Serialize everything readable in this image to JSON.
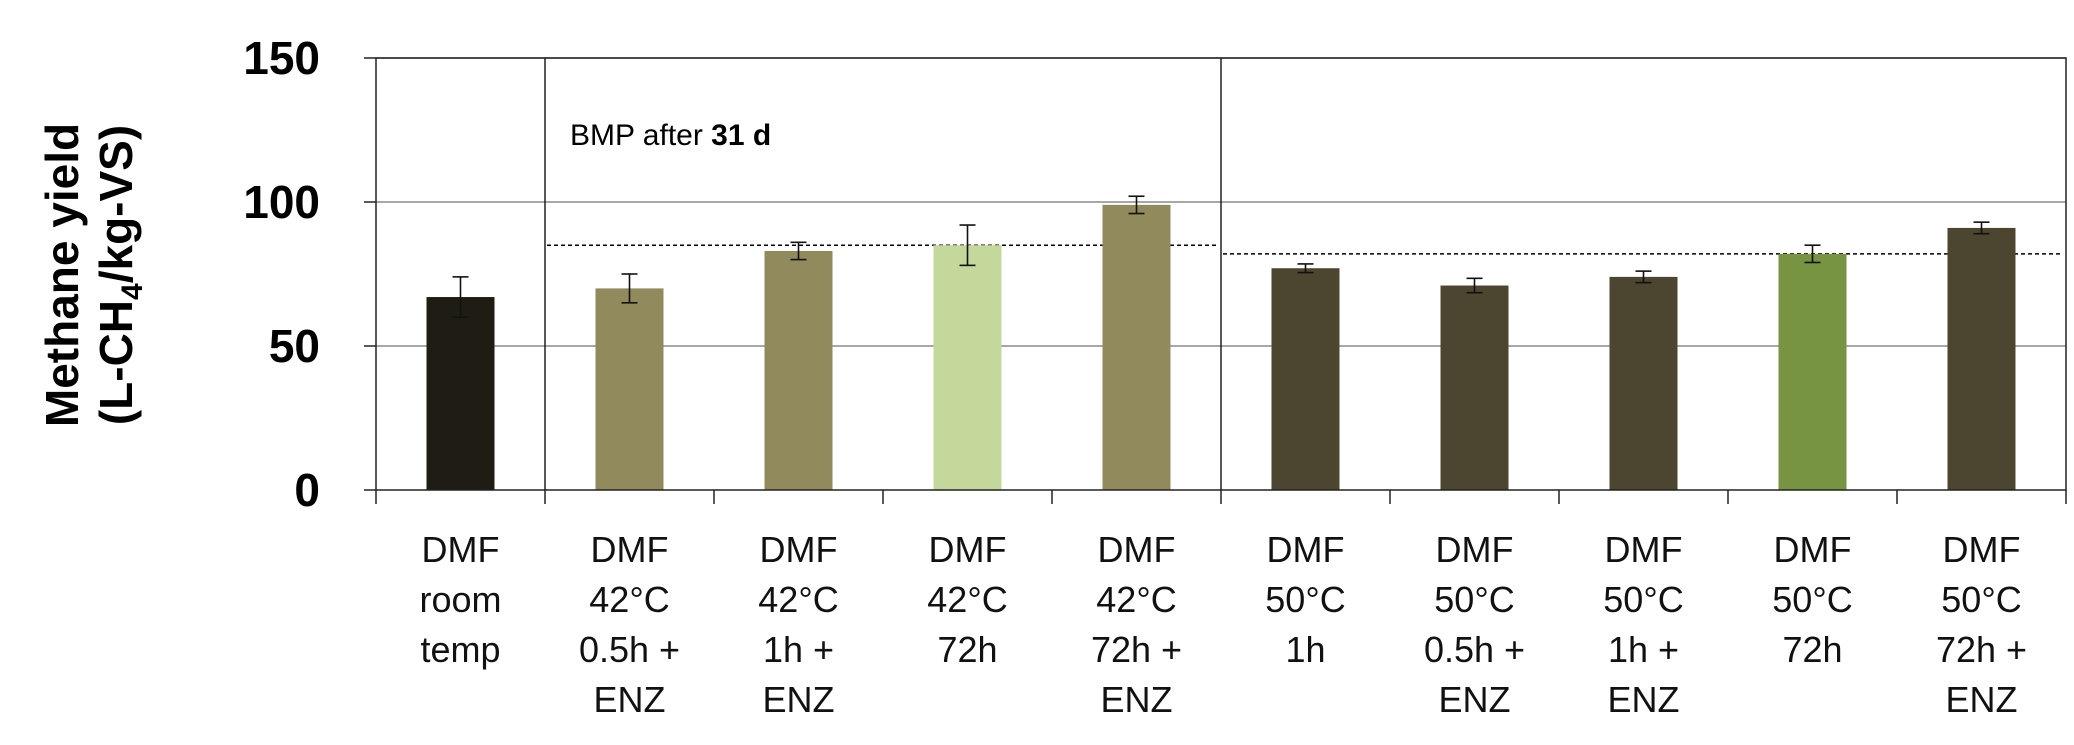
{
  "chart_data": {
    "type": "bar",
    "ylabel_line1": "Methane yield",
    "ylabel_line2_prefix": "(L-CH",
    "ylabel_line2_subscript": "4",
    "ylabel_line2_suffix": "/kg-VS)",
    "ylim": [
      0,
      150
    ],
    "yticks": [
      "0",
      "50",
      "100",
      "150"
    ],
    "grid": true,
    "annotation": {
      "prefix": "BMP after ",
      "bold": "31 d"
    },
    "categories": [
      [
        "DMF",
        "room",
        "temp"
      ],
      [
        "DMF",
        "42°C",
        "0.5h +",
        "ENZ"
      ],
      [
        "DMF",
        "42°C",
        "1h +",
        "ENZ"
      ],
      [
        "DMF",
        "42°C",
        "72h"
      ],
      [
        "DMF",
        "42°C",
        "72h +",
        "ENZ"
      ],
      [
        "DMF",
        "50°C",
        "1h"
      ],
      [
        "DMF",
        "50°C",
        "0.5h +",
        "ENZ"
      ],
      [
        "DMF",
        "50°C",
        "1h +",
        "ENZ"
      ],
      [
        "DMF",
        "50°C",
        "72h"
      ],
      [
        "DMF",
        "50°C",
        "72h +",
        "ENZ"
      ]
    ],
    "values": [
      67,
      70,
      83,
      85,
      99,
      77,
      71,
      74,
      82,
      91
    ],
    "errors": [
      7,
      5,
      3,
      7,
      3,
      1.5,
      2.5,
      2,
      3,
      2
    ],
    "colors": [
      "#1f1d13",
      "#908a5d",
      "#908a5d",
      "#c5d89c",
      "#908a5d",
      "#4c4631",
      "#4c4631",
      "#4c4631",
      "#769441",
      "#4c4631"
    ],
    "reference_lines": [
      {
        "from_category": 1,
        "to_category": 4,
        "value": 85
      },
      {
        "from_category": 5,
        "to_category": 9,
        "value": 82
      }
    ],
    "group_separators_after": [
      0,
      4
    ]
  }
}
